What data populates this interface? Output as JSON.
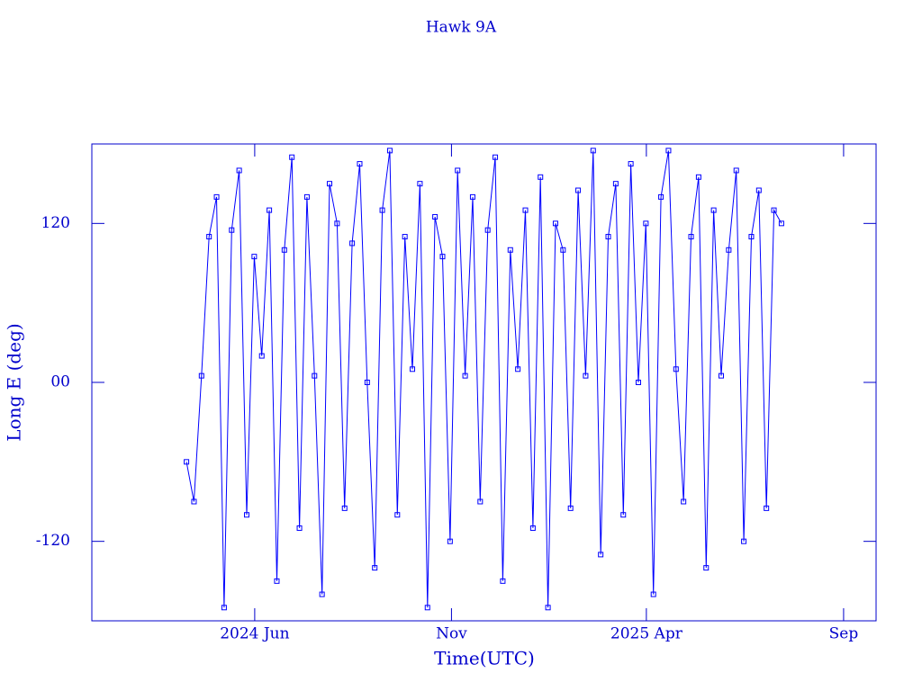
{
  "chart_data": {
    "type": "line",
    "title": "Hawk 9A",
    "x_label": "Time(UTC)",
    "y_label": "Long E (deg)",
    "color": "#0000ff",
    "markers": true,
    "xlim": [
      2024.069,
      2025.735
    ],
    "ylim": [
      -180,
      180
    ],
    "xticks": [
      {
        "value": 2024.415,
        "label": "2024 Jun"
      },
      {
        "value": 2024.833,
        "label": "Nov"
      },
      {
        "value": 2025.247,
        "label": "2025 Apr"
      },
      {
        "value": 2025.666,
        "label": "Sep"
      }
    ],
    "yticks": [
      -120,
      {
        "value": 0,
        "label": "00"
      },
      120
    ],
    "x": [
      2024.27,
      2024.286,
      2024.302,
      2024.318,
      2024.334,
      2024.35,
      2024.366,
      2024.382,
      2024.398,
      2024.414,
      2024.43,
      2024.446,
      2024.462,
      2024.478,
      2024.494,
      2024.51,
      2024.526,
      2024.542,
      2024.558,
      2024.574,
      2024.59,
      2024.606,
      2024.622,
      2024.638,
      2024.654,
      2024.67,
      2024.686,
      2024.702,
      2024.718,
      2024.734,
      2024.75,
      2024.766,
      2024.782,
      2024.798,
      2024.814,
      2024.83,
      2024.846,
      2024.862,
      2024.878,
      2024.894,
      2024.91,
      2024.926,
      2024.942,
      2024.958,
      2024.974,
      2024.99,
      2025.006,
      2025.022,
      2025.038,
      2025.054,
      2025.07,
      2025.086,
      2025.102,
      2025.118,
      2025.134,
      2025.15,
      2025.166,
      2025.182,
      2025.198,
      2025.214,
      2025.23,
      2025.246,
      2025.262,
      2025.278,
      2025.294,
      2025.31,
      2025.326,
      2025.342,
      2025.358,
      2025.374,
      2025.39,
      2025.406,
      2025.422,
      2025.438,
      2025.454,
      2025.47,
      2025.486,
      2025.502,
      2025.518,
      2025.534
    ],
    "values": [
      -60,
      -90,
      5,
      110,
      140,
      -170,
      115,
      160,
      -100,
      95,
      20,
      130,
      -150,
      100,
      170,
      -110,
      140,
      5,
      -160,
      150,
      120,
      -95,
      105,
      165,
      0,
      -140,
      130,
      175,
      -100,
      110,
      10,
      150,
      -170,
      125,
      95,
      -120,
      160,
      5,
      140,
      -90,
      115,
      170,
      -150,
      100,
      10,
      130,
      -110,
      155,
      -170,
      120,
      100,
      -95,
      145,
      5,
      175,
      -130,
      110,
      150,
      -100,
      165,
      0,
      120,
      -160,
      140,
      175,
      10,
      -90,
      110,
      155,
      -140,
      130,
      5,
      100,
      160,
      -120,
      110,
      145,
      -95,
      130,
      120
    ]
  }
}
